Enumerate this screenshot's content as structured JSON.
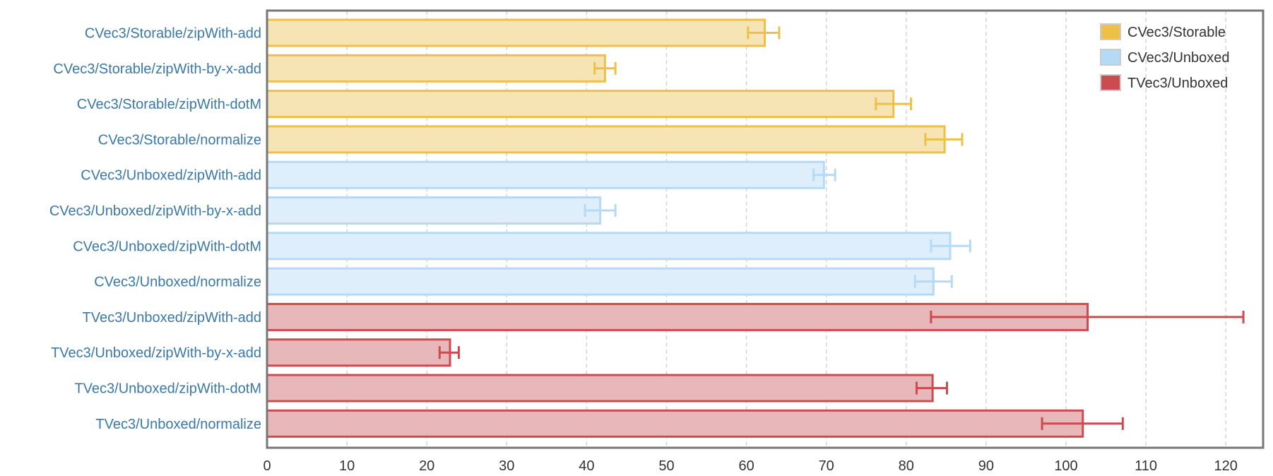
{
  "chart_data": {
    "type": "bar",
    "orientation": "horizontal",
    "categories": [
      "CVec3/Storable/zipWith-add",
      "CVec3/Storable/zipWith-by-x-add",
      "CVec3/Storable/zipWith-dotM",
      "CVec3/Storable/normalize",
      "CVec3/Unboxed/zipWith-add",
      "CVec3/Unboxed/zipWith-by-x-add",
      "CVec3/Unboxed/zipWith-dotM",
      "CVec3/Unboxed/normalize",
      "TVec3/Unboxed/zipWith-add",
      "TVec3/Unboxed/zipWith-by-x-add",
      "TVec3/Unboxed/zipWith-dotM",
      "TVec3/Unboxed/normalize"
    ],
    "bars": [
      {
        "series": 0,
        "value": 62.3,
        "err_low": 60.2,
        "err_high": 64.1
      },
      {
        "series": 0,
        "value": 42.3,
        "err_low": 41.0,
        "err_high": 43.6
      },
      {
        "series": 0,
        "value": 78.4,
        "err_low": 76.2,
        "err_high": 80.6
      },
      {
        "series": 0,
        "value": 84.8,
        "err_low": 82.4,
        "err_high": 87.0
      },
      {
        "series": 1,
        "value": 69.7,
        "err_low": 68.4,
        "err_high": 71.1
      },
      {
        "series": 1,
        "value": 41.7,
        "err_low": 39.8,
        "err_high": 43.6
      },
      {
        "series": 1,
        "value": 85.5,
        "err_low": 83.1,
        "err_high": 88.0
      },
      {
        "series": 1,
        "value": 83.4,
        "err_low": 81.1,
        "err_high": 85.7
      },
      {
        "series": 2,
        "value": 102.7,
        "err_low": 83.1,
        "err_high": 122.2
      },
      {
        "series": 2,
        "value": 22.9,
        "err_low": 21.6,
        "err_high": 24.0
      },
      {
        "series": 2,
        "value": 83.3,
        "err_low": 81.3,
        "err_high": 85.1
      },
      {
        "series": 2,
        "value": 102.1,
        "err_low": 97.0,
        "err_high": 107.1
      }
    ],
    "series": [
      {
        "name": "CVec3/Storable",
        "color": "#eec04a",
        "fill": "#f6e4b5"
      },
      {
        "name": "CVec3/Unboxed",
        "color": "#b5daf6",
        "fill": "#dfeefb"
      },
      {
        "name": "TVec3/Unboxed",
        "color": "#cc4b4f",
        "fill": "#e8b7b9"
      }
    ],
    "xlim": [
      0,
      124
    ],
    "xticks": [
      0,
      10,
      20,
      30,
      40,
      50,
      60,
      70,
      80,
      90,
      100,
      110,
      120
    ],
    "xlabel": "",
    "ylabel": "",
    "title": "",
    "grid": "vertical",
    "legend_position": "top-right"
  }
}
